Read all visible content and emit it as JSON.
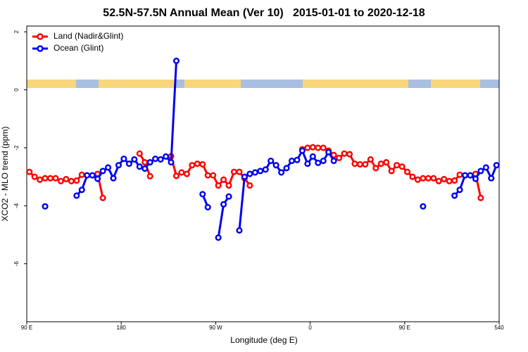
{
  "chart_data": {
    "type": "line",
    "title": "52.5N-57.5N Annual Mean (Ver 10)   2015-01-01 to 2020-12-18",
    "xlabel": "Longitude (deg E)",
    "ylabel": "XCO2 - MLO trend (ppm)",
    "x": [
      92.5,
      97.5,
      102.5,
      107.5,
      112.5,
      117.5,
      122.5,
      127.5,
      132.5,
      137.5,
      142.5,
      147.5,
      152.5,
      157.5,
      162.5,
      167.5,
      172.5,
      177.5,
      182.5,
      187.5,
      192.5,
      197.5,
      202.5,
      207.5,
      212.5,
      217.5,
      222.5,
      227.5,
      232.5,
      237.5,
      242.5,
      247.5,
      252.5,
      257.5,
      262.5,
      267.5,
      272.5,
      277.5,
      282.5,
      287.5,
      292.5,
      297.5,
      302.5,
      307.5,
      312.5,
      317.5,
      322.5,
      327.5,
      332.5,
      337.5,
      342.5,
      347.5,
      352.5,
      357.5,
      362.5,
      367.5,
      372.5,
      377.5,
      382.5,
      387.5,
      392.5,
      397.5,
      402.5,
      407.5,
      412.5,
      417.5,
      422.5,
      427.5,
      432.5,
      437.5,
      442.5,
      447.5,
      452.5,
      457.5,
      462.5,
      467.5,
      472.5,
      477.5,
      482.5,
      487.5,
      492.5,
      497.5,
      502.5,
      507.5,
      512.5,
      517.5,
      522.5,
      527.5,
      532.5,
      537.5
    ],
    "series": [
      {
        "name": "Land (Nadir&Glint)",
        "color": "#ff0000",
        "values": [
          -2.83,
          -3.0,
          -3.1,
          -3.05,
          -3.05,
          -3.05,
          -3.15,
          -3.08,
          -3.15,
          -3.13,
          -2.93,
          null,
          null,
          -2.9,
          -3.73,
          null,
          null,
          null,
          null,
          null,
          null,
          -2.2,
          -2.5,
          -2.98,
          null,
          null,
          null,
          -2.29,
          -2.97,
          -2.85,
          -2.9,
          -2.6,
          -2.55,
          -2.57,
          -2.95,
          -2.95,
          -3.3,
          -3.1,
          -3.3,
          -2.83,
          -2.83,
          -3.05,
          -3.3,
          null,
          null,
          null,
          null,
          null,
          null,
          null,
          null,
          null,
          -2.05,
          -2.0,
          -1.98,
          -2.0,
          -2.0,
          -2.1,
          -2.25,
          -2.35,
          -2.2,
          -2.22,
          -2.55,
          -2.57,
          -2.57,
          -2.4,
          -2.7,
          -2.55,
          -2.5,
          -2.8,
          -2.6,
          -2.65,
          -2.83,
          -3.0,
          -3.1,
          -3.05,
          -3.05,
          -3.05,
          -3.15,
          -3.08,
          -3.15,
          -3.13,
          -2.93,
          null,
          null,
          -2.9,
          -3.73,
          null,
          null,
          null
        ]
      },
      {
        "name": "Ocean (Glint)",
        "color": "#0000ee",
        "values": [
          null,
          null,
          null,
          -4.02,
          null,
          null,
          null,
          null,
          null,
          -3.65,
          -3.45,
          -2.95,
          -2.95,
          -3.07,
          -2.8,
          -2.68,
          -3.05,
          -2.6,
          -2.38,
          -2.55,
          -2.4,
          -2.65,
          -2.72,
          -2.5,
          -2.38,
          -2.4,
          -2.3,
          -2.5,
          1.0,
          null,
          null,
          null,
          null,
          -3.6,
          -4.05,
          null,
          -5.1,
          -3.95,
          -3.68,
          null,
          -4.85,
          -3.0,
          -2.9,
          -2.85,
          -2.8,
          -2.75,
          -2.45,
          -2.6,
          -2.85,
          -2.7,
          -2.45,
          -2.42,
          -2.1,
          -2.55,
          -2.3,
          -2.52,
          -2.45,
          -2.15,
          -2.45,
          null,
          null,
          null,
          null,
          null,
          null,
          null,
          null,
          null,
          null,
          null,
          null,
          null,
          null,
          null,
          null,
          -4.02,
          null,
          null,
          null,
          null,
          null,
          -3.65,
          -3.45,
          -2.95,
          -2.95,
          -3.07,
          -2.8,
          -2.68,
          -3.05,
          -2.6
        ]
      }
    ],
    "xlim": [
      90,
      540
    ],
    "xticks": [
      {
        "value": 90,
        "label": "90 E"
      },
      180,
      {
        "value": 270,
        "label": "90 W"
      },
      {
        "value": 360,
        "label": "0"
      },
      {
        "value": 450,
        "label": "90 E"
      },
      540
    ],
    "ylim": [
      -8,
      2.2
    ],
    "yticks": [
      2,
      0,
      -2,
      -4,
      -6
    ],
    "grid": false,
    "legend": "top-left"
  }
}
